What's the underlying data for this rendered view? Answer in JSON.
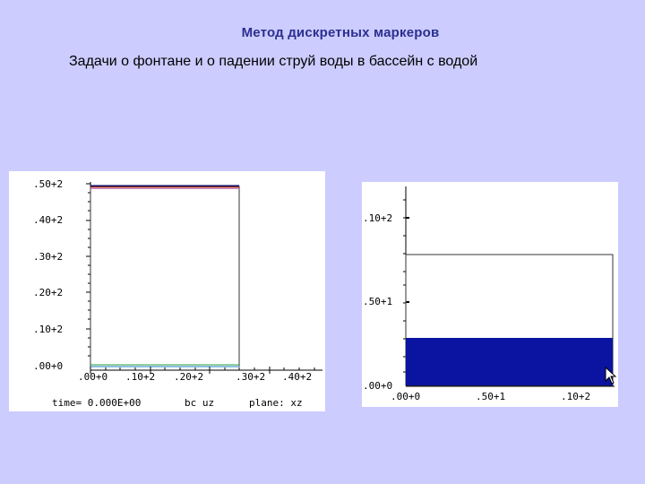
{
  "slide": {
    "title": "Метод дискретных маркеров",
    "subtitle": "Задачи о фонтане и о падении струй воды в бассейн с водой"
  },
  "left_plot": {
    "y_ticks": [
      ".50+2",
      ".40+2",
      ".30+2",
      ".20+2",
      ".10+2",
      ".00+0"
    ],
    "x_ticks": [
      ".00+0",
      ".10+2",
      ".20+2",
      ".30+2",
      ".40+2"
    ],
    "footer": {
      "time": "time= 0.000E+00",
      "bc": "bc uz",
      "plane": "plane: xz"
    }
  },
  "right_plot": {
    "y_ticks": [
      ".10+2",
      ".50+1",
      ".00+0"
    ],
    "x_ticks": [
      ".00+0",
      ".50+1",
      ".10+2"
    ],
    "water_color": "#0a14a0"
  },
  "colors": {
    "background": "#ccccff",
    "title": "#2b2f8f"
  }
}
